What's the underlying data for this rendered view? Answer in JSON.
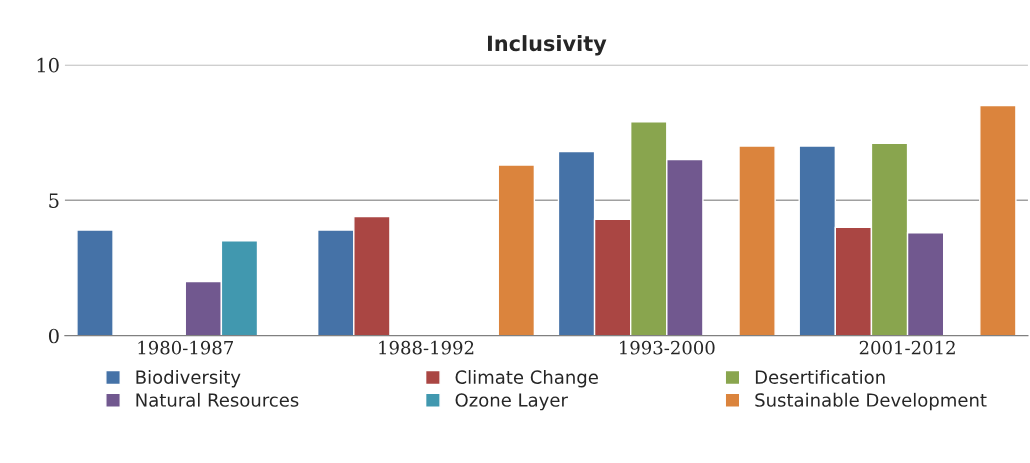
{
  "chart_data": {
    "type": "bar",
    "title": "Inclusivity",
    "categories": [
      "1980-1987",
      "1988-1992",
      "1993-2000",
      "2001-2012"
    ],
    "series": [
      {
        "name": "Biodiversity",
        "color": "#4572a7",
        "values": [
          3.9,
          3.9,
          6.8,
          7.0
        ]
      },
      {
        "name": "Climate Change",
        "color": "#aa4643",
        "values": [
          null,
          4.4,
          4.3,
          4.0
        ]
      },
      {
        "name": "Desertification",
        "color": "#89a54e",
        "values": [
          null,
          null,
          7.9,
          7.1
        ]
      },
      {
        "name": "Natural Resources",
        "color": "#71588f",
        "values": [
          2.0,
          null,
          6.5,
          3.8
        ]
      },
      {
        "name": "Ozone Layer",
        "color": "#4198af",
        "values": [
          3.5,
          null,
          null,
          null
        ]
      },
      {
        "name": "Sustainable Development",
        "color": "#db843d",
        "values": [
          null,
          6.3,
          7.0,
          8.5
        ]
      }
    ],
    "ylim": [
      0,
      10
    ],
    "yticks": [
      0,
      5,
      10
    ],
    "grid": "y",
    "legend": "bottom"
  }
}
